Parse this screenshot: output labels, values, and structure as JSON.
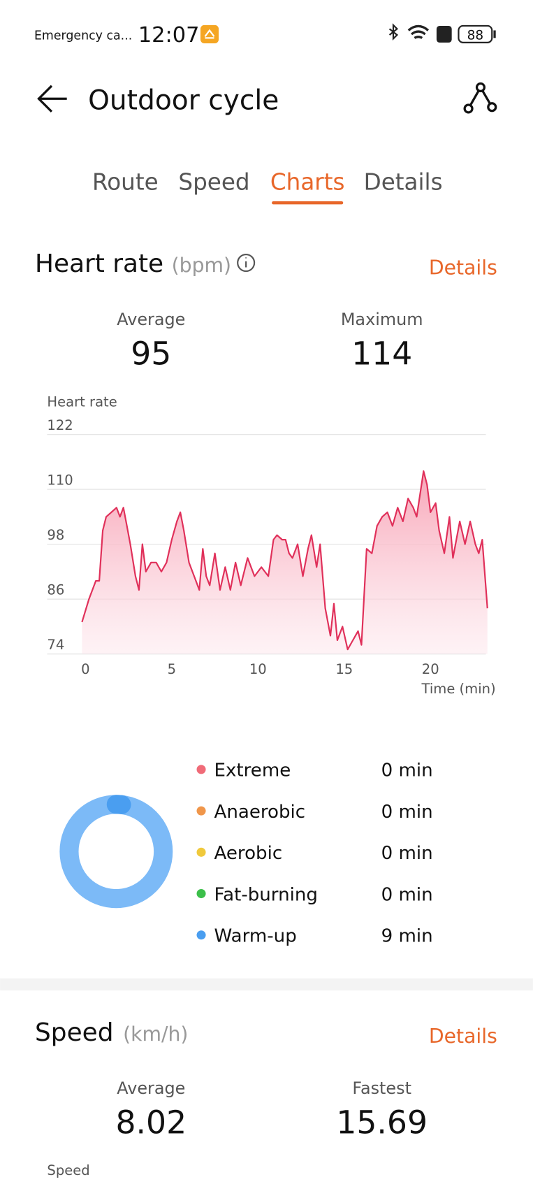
{
  "status_bar": {
    "carrier": "Emergency ca...",
    "time": "12:07",
    "battery": "88"
  },
  "header": {
    "title": "Outdoor cycle"
  },
  "tabs": [
    "Route",
    "Speed",
    "Charts",
    "Details"
  ],
  "heart_rate": {
    "title": "Heart rate",
    "unit": "(bpm)",
    "link": "Details",
    "stats": [
      {
        "label": "Average",
        "value": 95
      },
      {
        "label": "Maximum",
        "value": 114
      }
    ],
    "zones": [
      {
        "name": "Extreme",
        "time": "0 min",
        "color": "#f06b78"
      },
      {
        "name": "Anaerobic",
        "time": "0 min",
        "color": "#f0964a"
      },
      {
        "name": "Aerobic",
        "time": "0 min",
        "color": "#f0c93c"
      },
      {
        "name": "Fat-burning",
        "time": "0 min",
        "color": "#3cbf4a"
      },
      {
        "name": "Warm-up",
        "time": "9 min",
        "color": "#4a9ef0"
      }
    ]
  },
  "chart_data": {
    "type": "line",
    "y_label": "Heart rate",
    "x_label": "Time (min)",
    "color": "#e0305a",
    "x": [
      -0.2,
      0.2,
      0.6,
      0.8,
      1.0,
      1.2,
      1.5,
      1.8,
      2.0,
      2.2,
      2.4,
      2.6,
      2.9,
      3.1,
      3.3,
      3.5,
      3.8,
      4.1,
      4.4,
      4.7,
      5.0,
      5.3,
      5.5,
      5.7,
      6.0,
      6.3,
      6.6,
      6.8,
      7.0,
      7.2,
      7.5,
      7.8,
      8.1,
      8.4,
      8.7,
      9.0,
      9.4,
      9.8,
      10.2,
      10.6,
      10.9,
      11.1,
      11.4,
      11.6,
      11.8,
      12.0,
      12.3,
      12.6,
      12.9,
      13.1,
      13.4,
      13.6,
      13.9,
      14.2,
      14.4,
      14.6,
      14.9,
      15.2,
      15.5,
      15.8,
      16.0,
      16.3,
      16.6,
      16.9,
      17.2,
      17.5,
      17.8,
      18.1,
      18.4,
      18.7,
      19.0,
      19.2,
      19.6,
      19.8,
      20.0,
      20.3,
      20.5,
      20.8,
      21.1,
      21.3,
      21.5,
      21.7,
      22.0,
      22.3,
      22.6,
      22.8,
      23.0,
      23.3
    ],
    "values": [
      81,
      86,
      90,
      90,
      101,
      104,
      105,
      106,
      104,
      106,
      102,
      98,
      91,
      88,
      98,
      92,
      94,
      94,
      92,
      94,
      99,
      103,
      105,
      101,
      94,
      91,
      88,
      97,
      91,
      89,
      96,
      88,
      93,
      88,
      94,
      89,
      95,
      91,
      93,
      91,
      99,
      100,
      99,
      99,
      96,
      95,
      98,
      91,
      97,
      100,
      93,
      98,
      84,
      78,
      85,
      77,
      80,
      75,
      77,
      79,
      76,
      97,
      96,
      102,
      104,
      105,
      102,
      106,
      103,
      108,
      106,
      104,
      114,
      111,
      105,
      107,
      101,
      96,
      104,
      95,
      99,
      103,
      98,
      103,
      98,
      96,
      99,
      84
    ],
    "xlim": [
      -0.2,
      23.3
    ],
    "xticks": [
      0,
      5,
      10,
      15,
      20
    ],
    "ylim": [
      74,
      122
    ],
    "yticks": [
      74,
      86,
      98,
      110,
      122
    ],
    "grid": true
  },
  "speed": {
    "title": "Speed",
    "unit": "(km/h)",
    "link": "Details",
    "stats": [
      {
        "label": "Average",
        "value": 8.02
      },
      {
        "label": "Fastest",
        "value": 15.69
      }
    ],
    "chart_label": "Speed"
  }
}
